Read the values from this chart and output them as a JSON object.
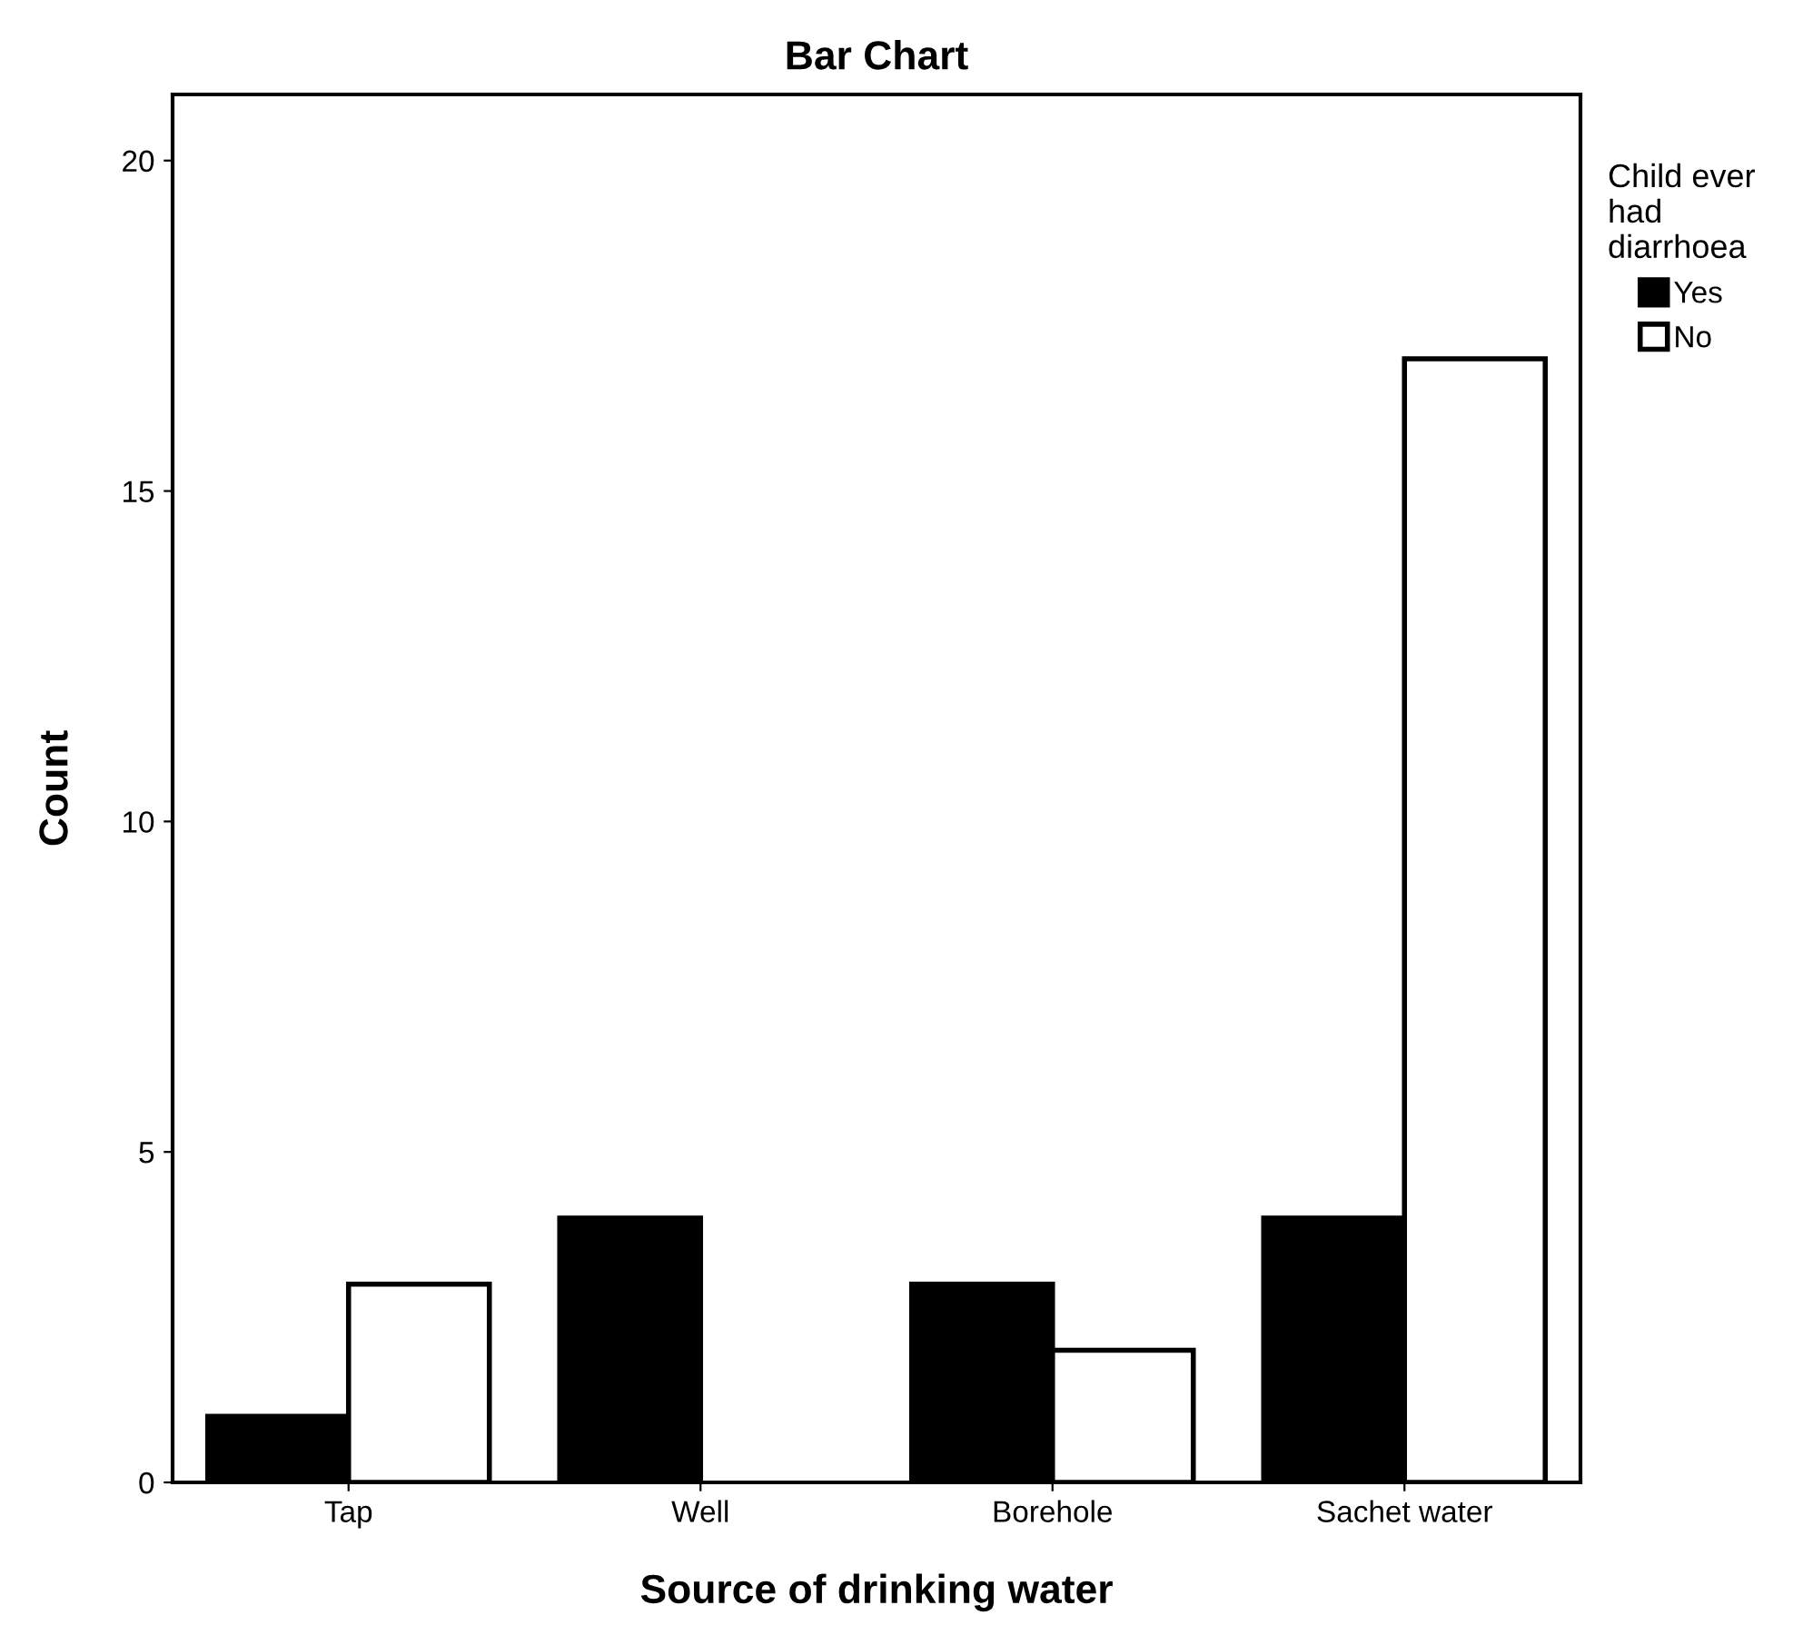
{
  "chart_data": {
    "type": "bar",
    "title": "Bar Chart",
    "xlabel": "Source of drinking water",
    "ylabel": "Count",
    "legend_title": "Child ever had diarrhoea",
    "categories": [
      "Tap",
      "Well",
      "Borehole",
      "Sachet water"
    ],
    "series": [
      {
        "name": "Yes",
        "color": "#000000",
        "values": [
          1,
          4,
          3,
          4
        ]
      },
      {
        "name": "No",
        "color": "#ffffff",
        "values": [
          3,
          0,
          2,
          17
        ]
      }
    ],
    "ylim": [
      0,
      21
    ],
    "yticks": [
      0,
      5,
      10,
      15,
      20
    ],
    "grid": false,
    "legend": "top right"
  }
}
